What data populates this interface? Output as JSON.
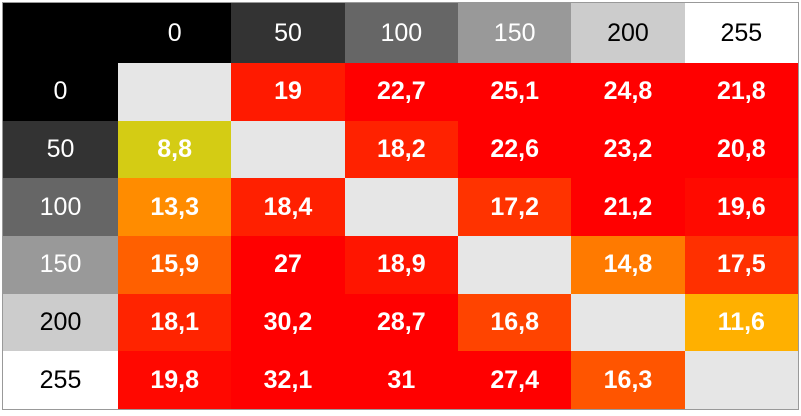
{
  "table": {
    "corner_color": "#000000",
    "header": [
      "0",
      "50",
      "100",
      "150",
      "200",
      "255"
    ],
    "header_colors": [
      "#000000",
      "#333333",
      "#666666",
      "#999999",
      "#cccccc",
      "#ffffff"
    ],
    "rows": [
      {
        "label": "0",
        "label_color": "#000000",
        "cells": [
          null,
          "19",
          "22,7",
          "25,1",
          "24,8",
          "21,8"
        ],
        "colors": [
          "#e6e6e6",
          "#ff1a00",
          "#ff0000",
          "#ff0000",
          "#ff0000",
          "#ff0000"
        ]
      },
      {
        "label": "50",
        "label_color": "#333333",
        "cells": [
          "8,8",
          null,
          "18,2",
          "22,6",
          "23,2",
          "20,8"
        ],
        "colors": [
          "#d4cc14",
          "#e6e6e6",
          "#ff2200",
          "#ff0000",
          "#ff0000",
          "#ff0000"
        ]
      },
      {
        "label": "100",
        "label_color": "#666666",
        "cells": [
          "13,3",
          "18,4",
          null,
          "17,2",
          "21,2",
          "19,6"
        ],
        "colors": [
          "#ff8c00",
          "#ff2000",
          "#e6e6e6",
          "#ff3300",
          "#ff0000",
          "#ff0a00"
        ]
      },
      {
        "label": "150",
        "label_color": "#999999",
        "cells": [
          "15,9",
          "27",
          "18,9",
          null,
          "14,8",
          "17,5"
        ],
        "colors": [
          "#ff6000",
          "#ff0000",
          "#ff1500",
          "#e6e6e6",
          "#ff7a00",
          "#ff3000"
        ]
      },
      {
        "label": "200",
        "label_color": "#cccccc",
        "cells": [
          "18,1",
          "30,2",
          "28,7",
          "16,8",
          null,
          "11,6"
        ],
        "colors": [
          "#ff2400",
          "#ff0000",
          "#ff0000",
          "#ff4400",
          "#e6e6e6",
          "#ffb000"
        ]
      },
      {
        "label": "255",
        "label_color": "#ffffff",
        "cells": [
          "19,8",
          "32,1",
          "31",
          "27,4",
          "16,3",
          null
        ],
        "colors": [
          "#ff0800",
          "#ff0000",
          "#ff0000",
          "#ff0000",
          "#ff5500",
          "#e6e6e6"
        ]
      }
    ]
  }
}
